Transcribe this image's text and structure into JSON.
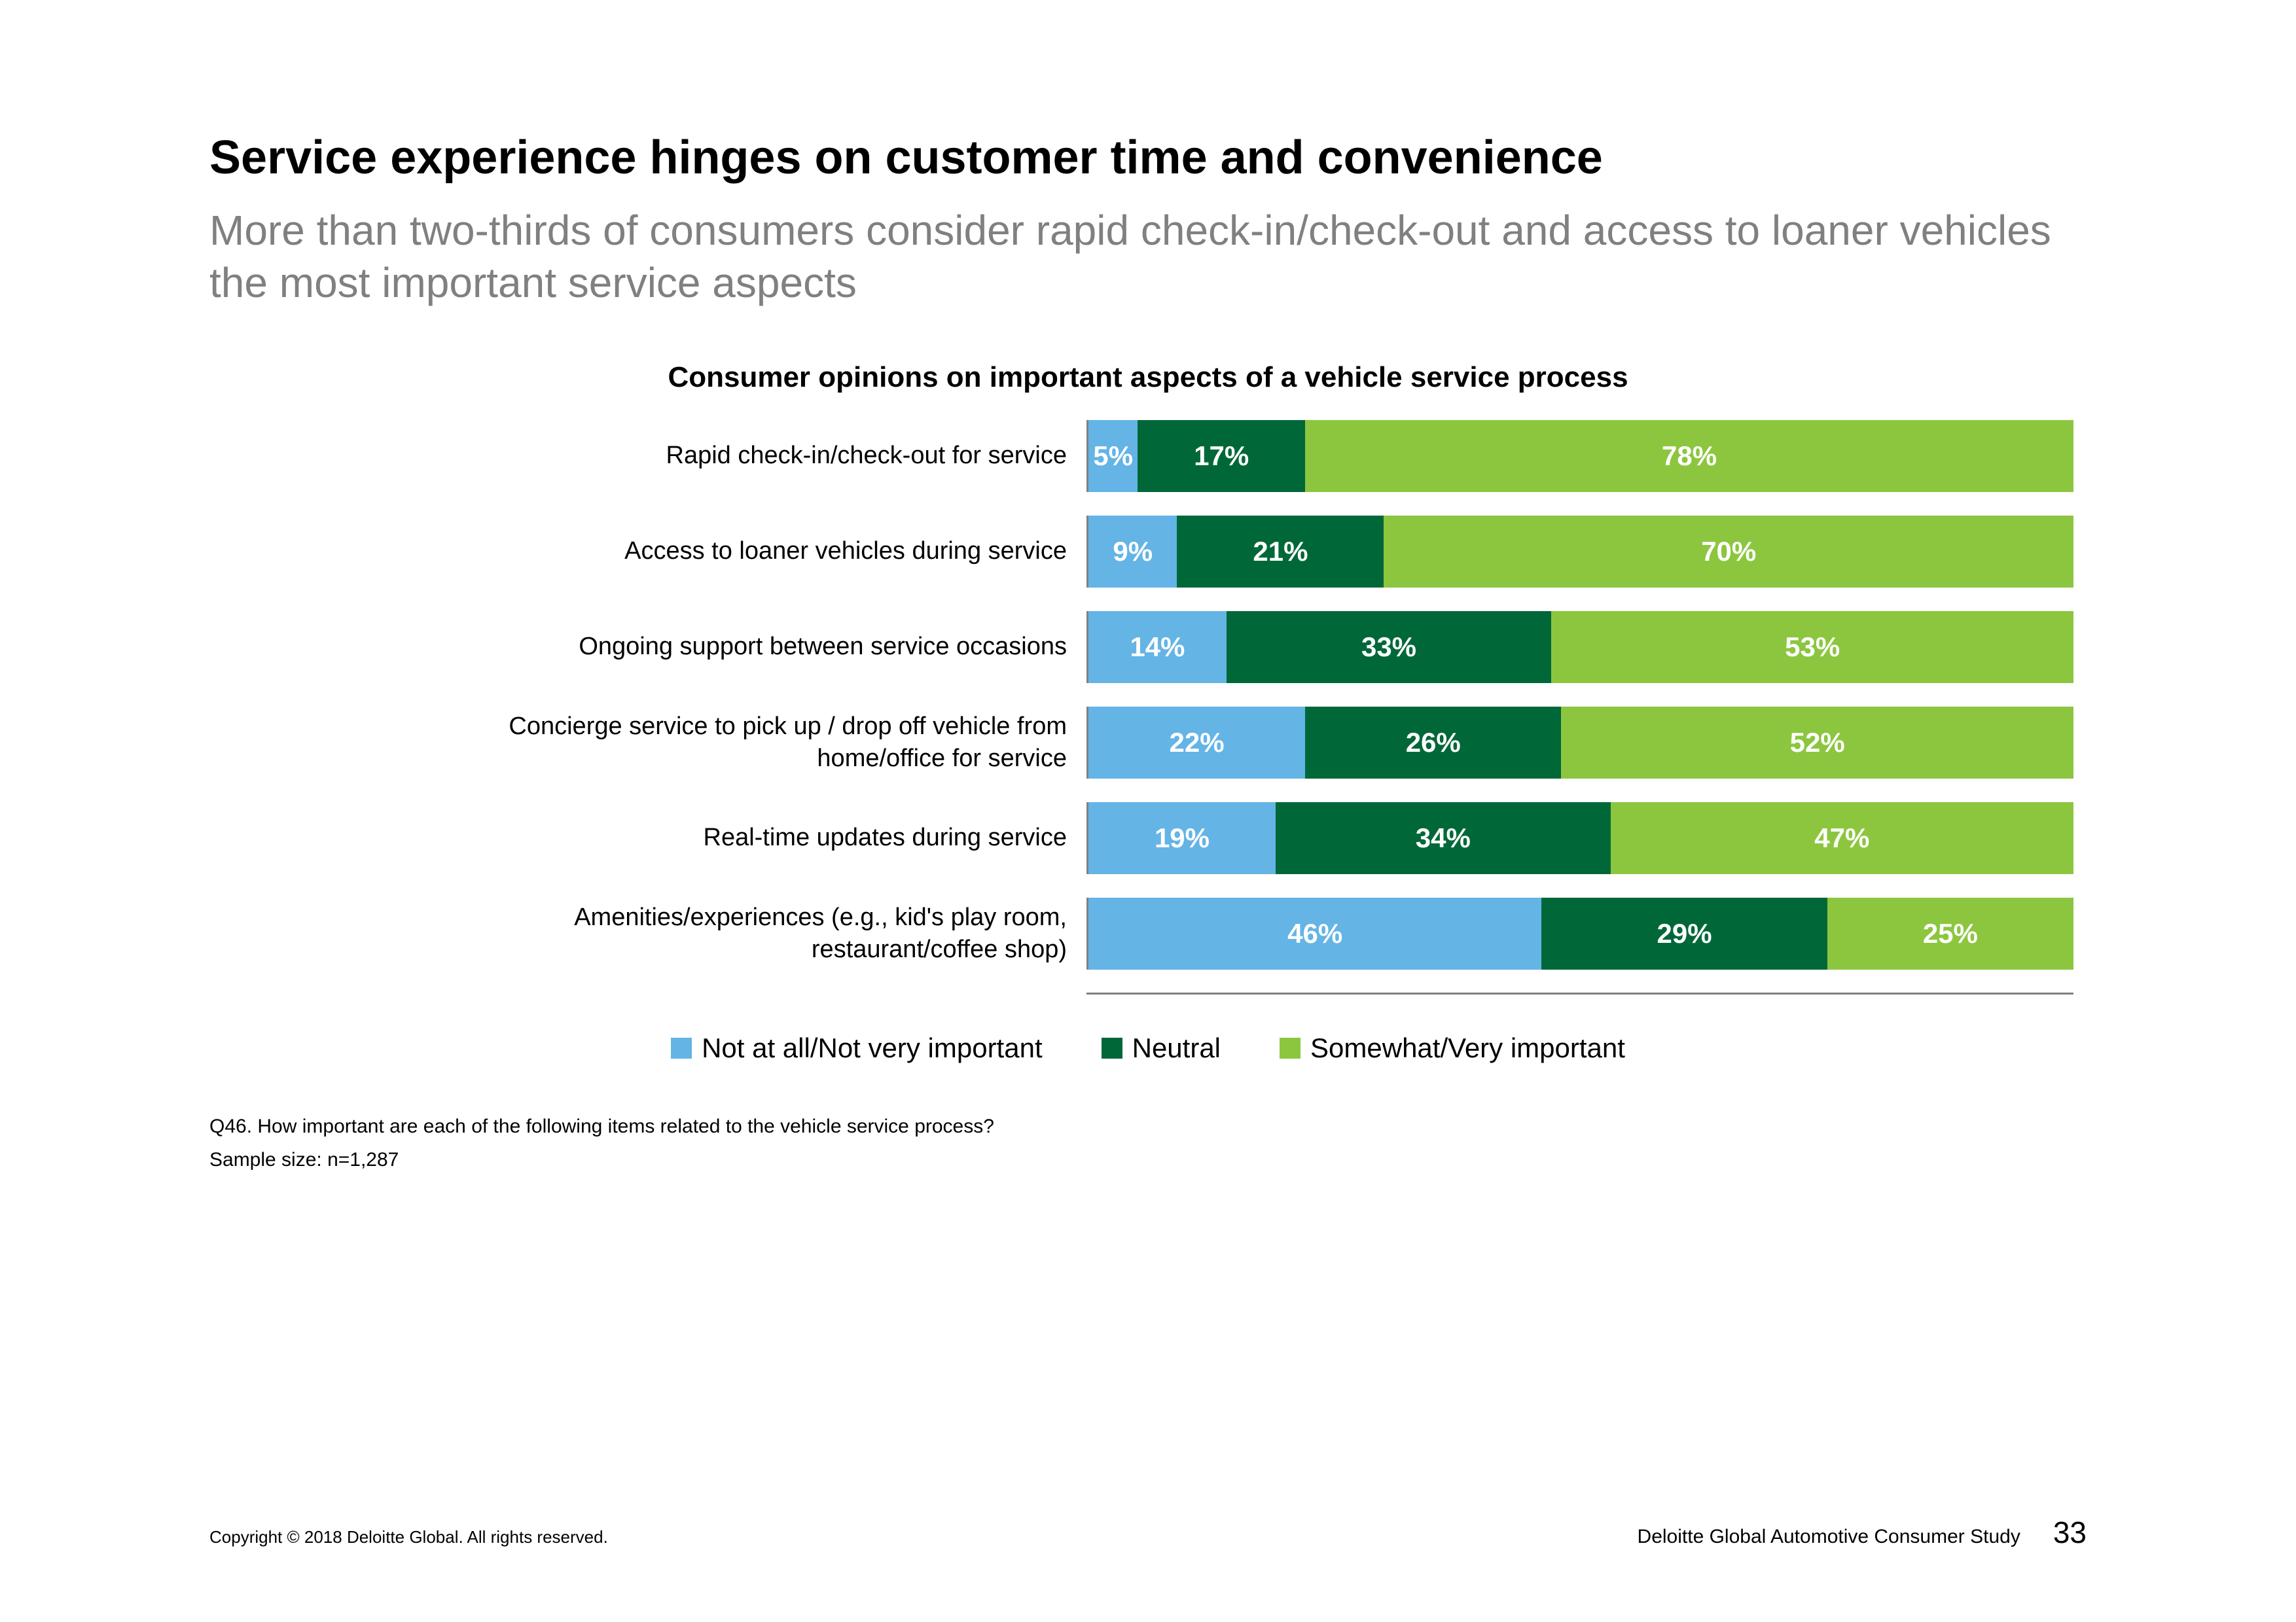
{
  "title": "Service experience hinges on customer time and convenience",
  "subtitle": "More than two-thirds of consumers consider rapid check-in/check-out and access to loaner vehicles the most important service aspects",
  "chart": {
    "type": "stacked-bar-horizontal",
    "title": "Consumer opinions on important aspects of a vehicle service process",
    "series_colors": [
      "#64b4e6",
      "#006838",
      "#8cc63f"
    ],
    "label_color": "#ffffff",
    "label_fontsize": 42,
    "row_label_fontsize": 38,
    "axis_color": "#808080",
    "background_color": "#ffffff",
    "legend": [
      "Not at all/Not very important",
      "Neutral",
      "Somewhat/Very important"
    ],
    "rows": [
      {
        "label": "Rapid check-in/check-out for service",
        "values": [
          5,
          17,
          78
        ]
      },
      {
        "label": "Access to loaner vehicles during service",
        "values": [
          9,
          21,
          70
        ]
      },
      {
        "label": "Ongoing support between service occasions",
        "values": [
          14,
          33,
          53
        ]
      },
      {
        "label": "Concierge service to pick up / drop off vehicle from home/office for service",
        "values": [
          22,
          26,
          52
        ]
      },
      {
        "label": "Real-time updates during service",
        "values": [
          19,
          34,
          47
        ]
      },
      {
        "label": "Amenities/experiences (e.g., kid's play room, restaurant/coffee shop)",
        "values": [
          46,
          29,
          25
        ]
      }
    ]
  },
  "footnotes": {
    "question": "Q46. How important are each of the following items related to the vehicle service process?",
    "sample": "Sample size: n=1,287"
  },
  "footer": {
    "copyright": "Copyright © 2018 Deloitte Global. All rights reserved.",
    "source": "Deloitte Global Automotive Consumer Study",
    "page": "33"
  }
}
